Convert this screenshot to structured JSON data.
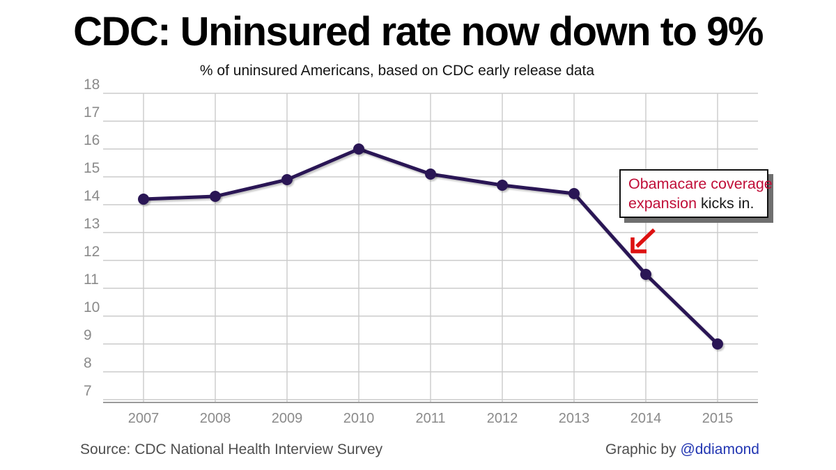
{
  "header": {
    "title": "CDC: Uninsured rate now down to 9%",
    "subtitle": "% of uninsured Americans, based on CDC early release data"
  },
  "chart_data": {
    "type": "line",
    "title": "% of uninsured Americans, based on CDC early release data",
    "categories": [
      "2007",
      "2008",
      "2009",
      "2010",
      "2011",
      "2012",
      "2013",
      "2014",
      "2015"
    ],
    "values": [
      14.2,
      14.3,
      14.9,
      16,
      15.1,
      14.7,
      14.4,
      11.5,
      9
    ],
    "series_name": "% of uninsured Americans",
    "xlabel": "",
    "ylabel": "",
    "ylim": [
      7,
      18
    ],
    "yticks": [
      18,
      17,
      16,
      15,
      14,
      13,
      12,
      11,
      10,
      9,
      8,
      7
    ],
    "grid": true,
    "legend": "none"
  },
  "annotation": {
    "line1": "Obamacare coverage",
    "line2_red": "expansion",
    "line2_black": " kicks in.",
    "text_red_color": "#c00e38",
    "arrow_color": "#dd1111"
  },
  "footer": {
    "source": "Source: CDC National Health Interview Survey",
    "credit_prefix": "Graphic by ",
    "credit_handle": "@ddiamond"
  },
  "colors": {
    "line": "#2b1655",
    "marker": "#2b1655",
    "gridline": "#cbcbcb",
    "axis": "#9a9a9a",
    "tick_label": "#8a8a8a",
    "handle_blue": "#2236b2",
    "annotation_red": "#c00e38",
    "arrow_red": "#dd1111"
  }
}
